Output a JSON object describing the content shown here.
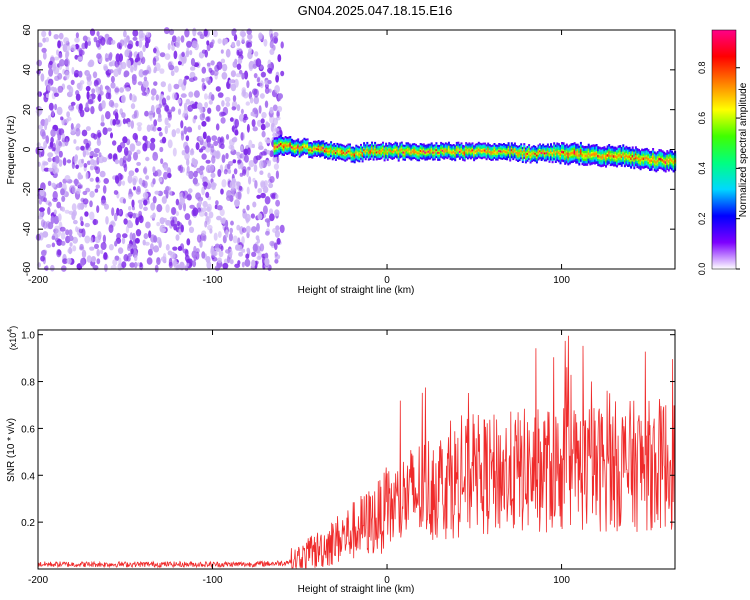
{
  "title": "GN04.2025.047.18.15.E16",
  "chart_data": [
    {
      "type": "heatmap",
      "xlabel": "Height of straight line (km)",
      "ylabel": "Frequency (Hz)",
      "xlim": [
        -200,
        165
      ],
      "ylim": [
        -60,
        60
      ],
      "x_ticks": [
        -200,
        -100,
        0,
        100
      ],
      "y_ticks": [
        -60,
        -40,
        -20,
        0,
        20,
        40,
        60
      ],
      "y_tick_labels": [
        "-60",
        "-40",
        "-20",
        "0",
        "20",
        "40",
        "60"
      ],
      "noise_region": {
        "x_range": [
          -200,
          -60
        ],
        "y_range": [
          -60,
          60
        ],
        "amplitude_range": [
          0.0,
          0.3
        ]
      },
      "ridge": {
        "x": [
          -65,
          -50,
          -40,
          -30,
          -20,
          -10,
          0,
          10,
          20,
          30,
          40,
          50,
          60,
          70,
          80,
          90,
          100,
          110,
          120,
          130,
          140,
          150,
          160,
          165
        ],
        "frequency": [
          2,
          1,
          0,
          -1,
          -2,
          -1,
          -1,
          -1,
          -1,
          -1,
          -1,
          -1,
          -1,
          -1,
          -2,
          -2,
          -2,
          -2,
          -3,
          -3,
          -4,
          -5,
          -6,
          -6
        ],
        "halfwidth": [
          5,
          4,
          4,
          4,
          4,
          4,
          4,
          4,
          4,
          4,
          4,
          4,
          4,
          4,
          4,
          4,
          5,
          5,
          5,
          5,
          5,
          5,
          5,
          5
        ],
        "peak_amplitude": 1.0
      },
      "colorbar": {
        "label": "Normalized spectral amplitude",
        "range": [
          0,
          0.95
        ],
        "ticks": [
          0.0,
          0.2,
          0.4,
          0.6,
          0.8
        ],
        "tick_labels": [
          "0.0",
          "0.2",
          "0.4",
          "0.6",
          "0.8"
        ],
        "colors": [
          "#ffffff",
          "#7d00ff",
          "#0000ff",
          "#00d8ff",
          "#00ff80",
          "#40ff00",
          "#ffff00",
          "#ff8000",
          "#ff0000",
          "#ff0088"
        ]
      },
      "grid": false
    },
    {
      "type": "line",
      "xlabel": "Height of straight line (km)",
      "ylabel": "SNR (10 * v/v)",
      "y_multiplier": "(x10",
      "y_multiplier_exp": "4",
      "xlim": [
        -200,
        165
      ],
      "ylim": [
        0,
        1.02
      ],
      "x_ticks": [
        -200,
        -100,
        0,
        100
      ],
      "y_ticks": [
        0.2,
        0.4,
        0.6,
        0.8,
        1.0
      ],
      "y_tick_labels": [
        "0.2",
        "0.4",
        "0.6",
        "0.8",
        "1.0"
      ],
      "series": [
        {
          "color": "#ef2a2a",
          "x": [
            -200,
            -180,
            -160,
            -140,
            -120,
            -100,
            -80,
            -60,
            -50,
            -45,
            -40,
            -35,
            -30,
            -25,
            -20,
            -15,
            -10,
            -5,
            0,
            5,
            10,
            20,
            30,
            40,
            50,
            60,
            70,
            80,
            90,
            100,
            110,
            120,
            130,
            140,
            150,
            160,
            165
          ],
          "y": [
            0.02,
            0.02,
            0.02,
            0.02,
            0.02,
            0.02,
            0.02,
            0.025,
            0.04,
            0.06,
            0.08,
            0.1,
            0.12,
            0.14,
            0.16,
            0.18,
            0.2,
            0.22,
            0.25,
            0.27,
            0.3,
            0.34,
            0.36,
            0.38,
            0.4,
            0.4,
            0.41,
            0.42,
            0.42,
            0.43,
            0.43,
            0.43,
            0.44,
            0.44,
            0.44,
            0.45,
            0.45
          ]
        }
      ],
      "grid": false
    }
  ]
}
